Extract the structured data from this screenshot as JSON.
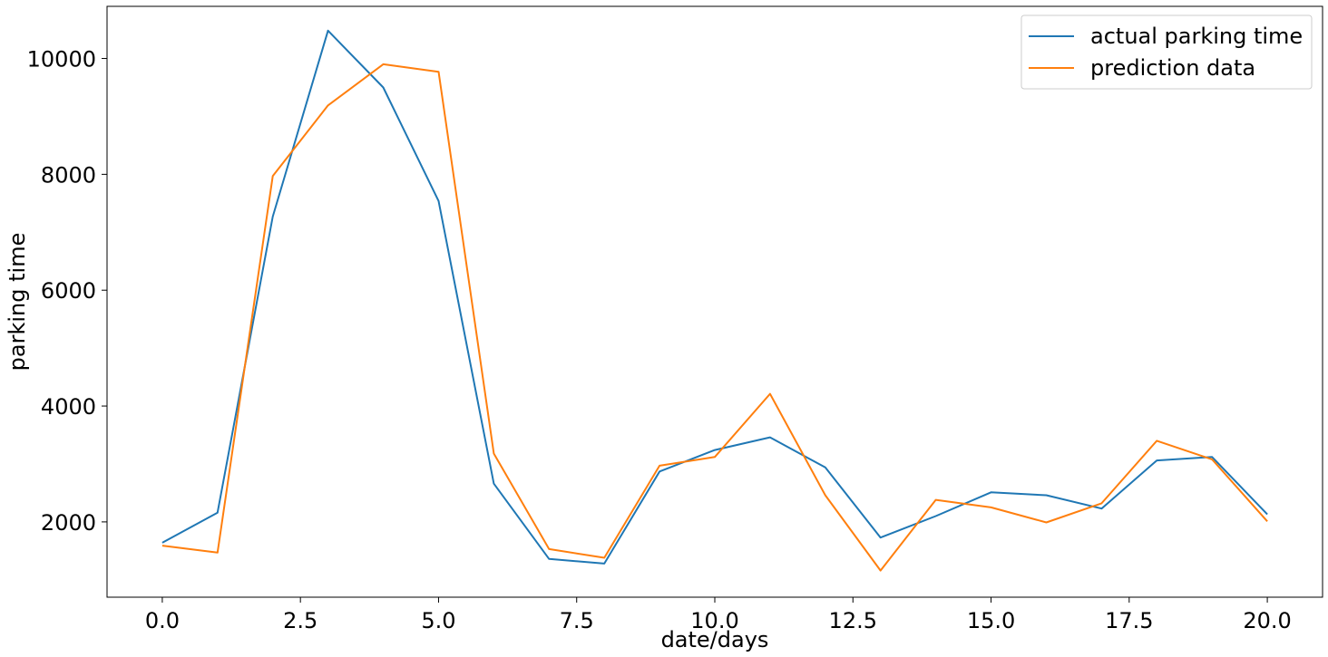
{
  "chart_data": {
    "type": "line",
    "title": "",
    "xlabel": "date/days",
    "ylabel": "parking time",
    "xlim": [
      -1.0,
      21.0
    ],
    "ylim": [
      700,
      10900
    ],
    "xticks": [
      0.0,
      2.5,
      5.0,
      7.5,
      10.0,
      12.5,
      15.0,
      17.5,
      20.0
    ],
    "xtick_labels": [
      "0.0",
      "2.5",
      "5.0",
      "7.5",
      "10.0",
      "12.5",
      "15.0",
      "17.5",
      "20.0"
    ],
    "yticks": [
      2000,
      4000,
      6000,
      8000,
      10000
    ],
    "ytick_labels": [
      "2000",
      "4000",
      "6000",
      "8000",
      "10000"
    ],
    "grid": false,
    "legend_position": "top-right",
    "x": [
      0,
      1,
      2,
      3,
      4,
      5,
      6,
      7,
      8,
      9,
      10,
      11,
      12,
      13,
      14,
      15,
      16,
      17,
      18,
      19,
      20
    ],
    "series": [
      {
        "name": "actual parking time",
        "color": "#1f77b4",
        "values": [
          1640,
          2160,
          7270,
          10480,
          9500,
          7540,
          2660,
          1360,
          1280,
          2870,
          3240,
          3460,
          2940,
          1730,
          2100,
          2510,
          2460,
          2230,
          3060,
          3120,
          2130
        ]
      },
      {
        "name": "prediction data",
        "color": "#ff7f0e",
        "values": [
          1590,
          1470,
          7970,
          9190,
          9900,
          9770,
          3180,
          1530,
          1380,
          2970,
          3120,
          4210,
          2460,
          1160,
          2380,
          2250,
          1990,
          2320,
          3400,
          3080,
          2010
        ]
      }
    ]
  }
}
